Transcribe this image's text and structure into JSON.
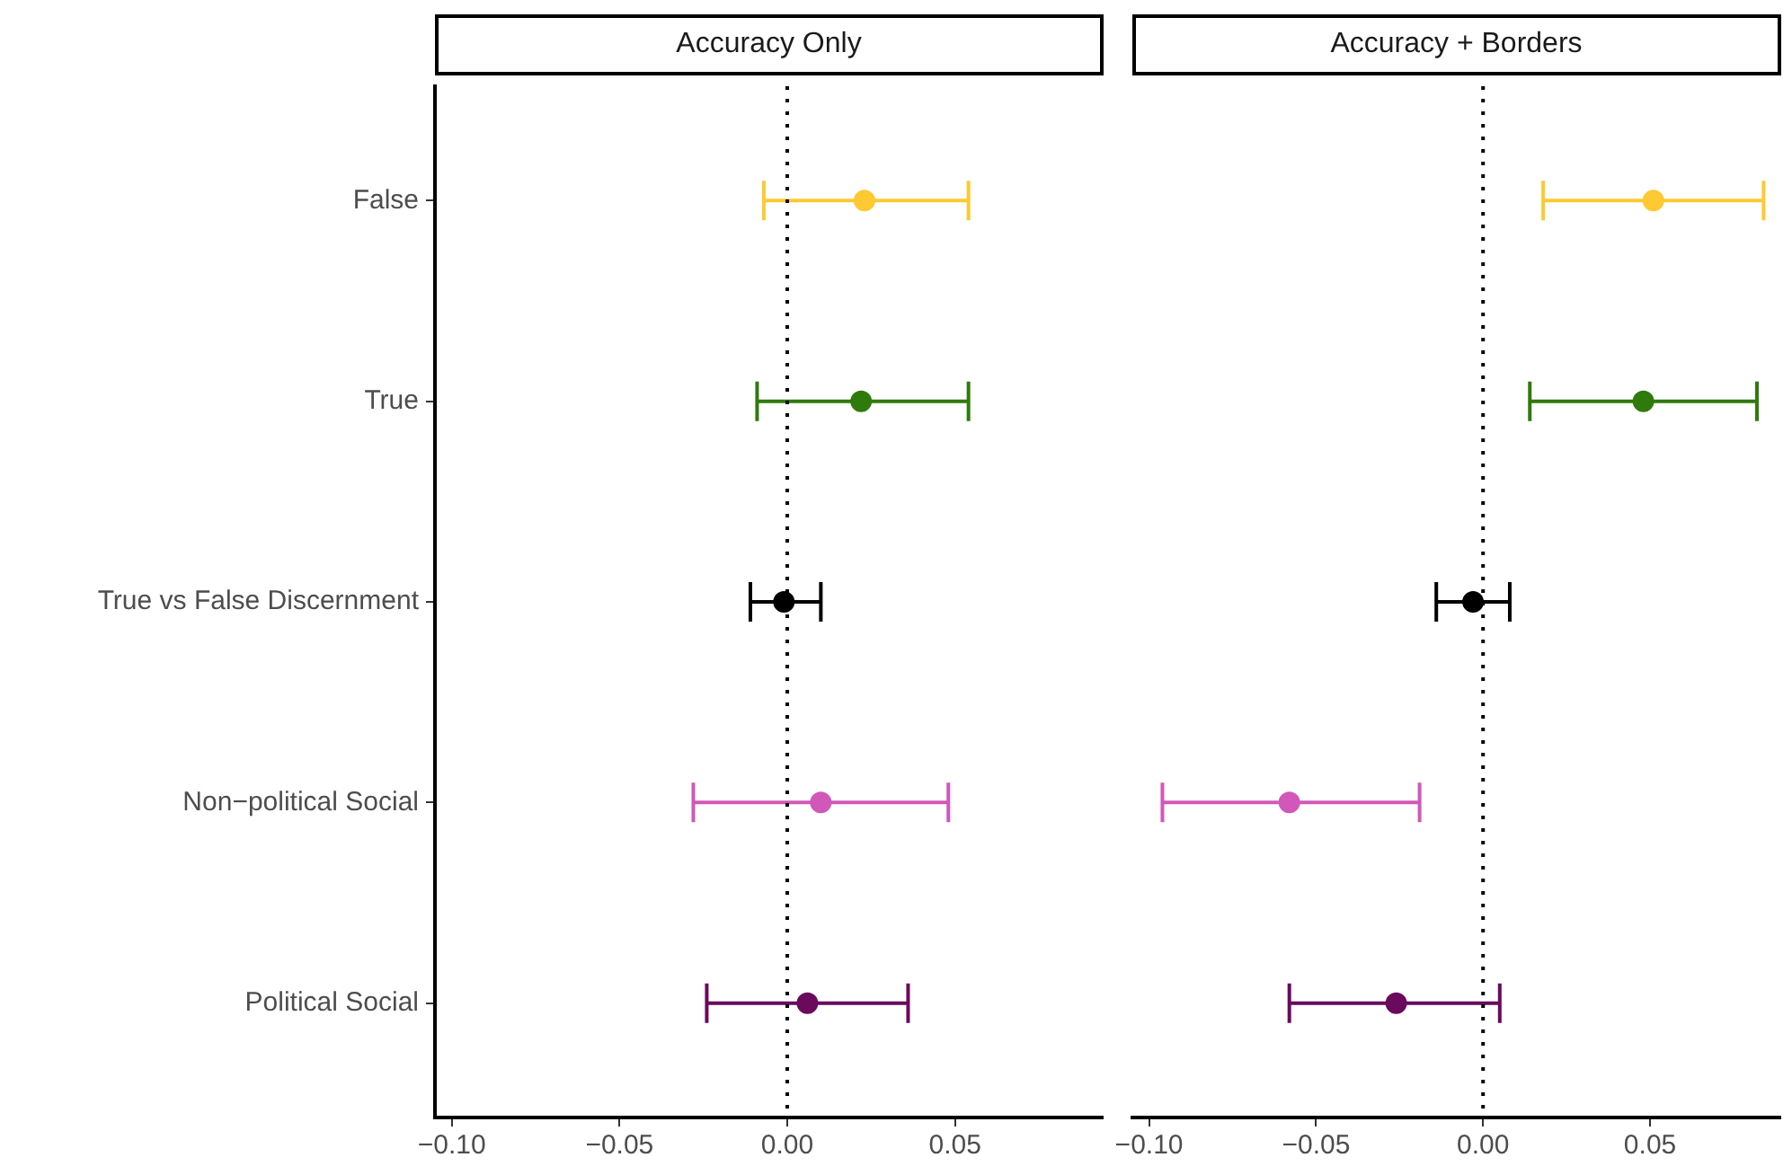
{
  "chart_data": [
    {
      "type": "scatter",
      "title": "Accuracy Only",
      "orientation": "horizontal",
      "marker": "circle",
      "categories": [
        "False",
        "True",
        "True vs False Discernment",
        "Non−political Social",
        "Political Social"
      ],
      "values": [
        0.023,
        0.022,
        -0.001,
        0.01,
        0.006
      ],
      "errors": [
        [
          -0.007,
          0.054
        ],
        [
          -0.009,
          0.054
        ],
        [
          -0.011,
          0.01
        ],
        [
          -0.028,
          0.048
        ],
        [
          -0.024,
          0.036
        ]
      ],
      "colors": [
        "#ffc933",
        "#2f7a0c",
        "#000000",
        "#d158b8",
        "#6a0a5d"
      ],
      "xlim": [
        -0.105,
        0.094
      ],
      "xticks": [
        {
          "value": -0.1,
          "label": "−0.10"
        },
        {
          "value": -0.05,
          "label": "−0.05"
        },
        {
          "value": 0,
          "label": "0.00"
        },
        {
          "value": 0.05,
          "label": "0.05"
        }
      ],
      "ref_lines": [
        {
          "axis": "x",
          "value": 0,
          "line_style": "dotted",
          "color": "#000000"
        }
      ],
      "grid": false
    },
    {
      "type": "scatter",
      "title": "Accuracy + Borders",
      "orientation": "horizontal",
      "marker": "circle",
      "categories": [
        null,
        null,
        null,
        null,
        null
      ],
      "values": [
        0.051,
        0.048,
        -0.003,
        -0.058,
        -0.026
      ],
      "errors": [
        [
          0.018,
          0.084
        ],
        [
          0.014,
          0.082
        ],
        [
          -0.014,
          0.008
        ],
        [
          -0.096,
          -0.019
        ],
        [
          -0.058,
          0.005
        ]
      ],
      "colors": [
        "#ffc933",
        "#2f7a0c",
        "#000000",
        "#d158b8",
        "#6a0a5d"
      ],
      "xlim": [
        -0.105,
        0.089
      ],
      "xticks": [
        {
          "value": -0.1,
          "label": "−0.10"
        },
        {
          "value": -0.05,
          "label": "−0.05"
        },
        {
          "value": 0,
          "label": "0.00"
        },
        {
          "value": 0.05,
          "label": "0.05"
        }
      ],
      "ref_lines": [
        {
          "axis": "x",
          "value": 0,
          "line_style": "dotted",
          "color": "#000000"
        }
      ],
      "grid": false,
      "tick_labels": "x"
    }
  ]
}
